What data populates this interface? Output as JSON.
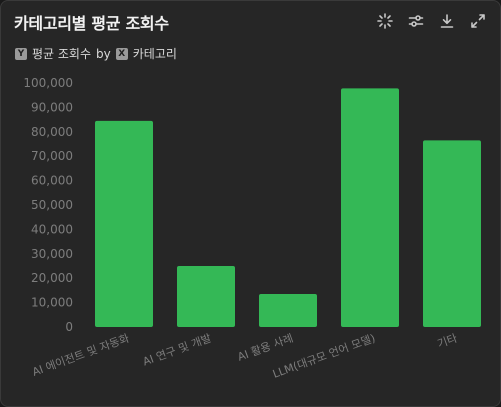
{
  "header": {
    "title": "카테고리별 평균 조회수",
    "y_badge": "Y",
    "y_field": "평균 조회수",
    "by_word": "by",
    "x_badge": "X",
    "x_field": "카테고리"
  },
  "toolbar": [
    {
      "name": "sparkle-icon"
    },
    {
      "name": "sliders-icon"
    },
    {
      "name": "download-icon"
    },
    {
      "name": "expand-icon"
    }
  ],
  "colors": {
    "bar": "#34b856",
    "axis_text": "#7d7d7d",
    "axis_line": "#5a5a5a"
  },
  "chart_data": {
    "type": "bar",
    "categories": [
      "AI 에이전트 및 자동화",
      "AI 연구 및 개발",
      "AI 활용 사례",
      "LLM(대규모 언어 모델)",
      "기타"
    ],
    "values": [
      84500,
      25000,
      13500,
      97800,
      76500
    ],
    "ylim": [
      0,
      100000
    ],
    "yticks": [
      "0",
      "10,000",
      "20,000",
      "30,000",
      "40,000",
      "50,000",
      "60,000",
      "70,000",
      "80,000",
      "90,000",
      "100,000"
    ],
    "grid": false
  }
}
